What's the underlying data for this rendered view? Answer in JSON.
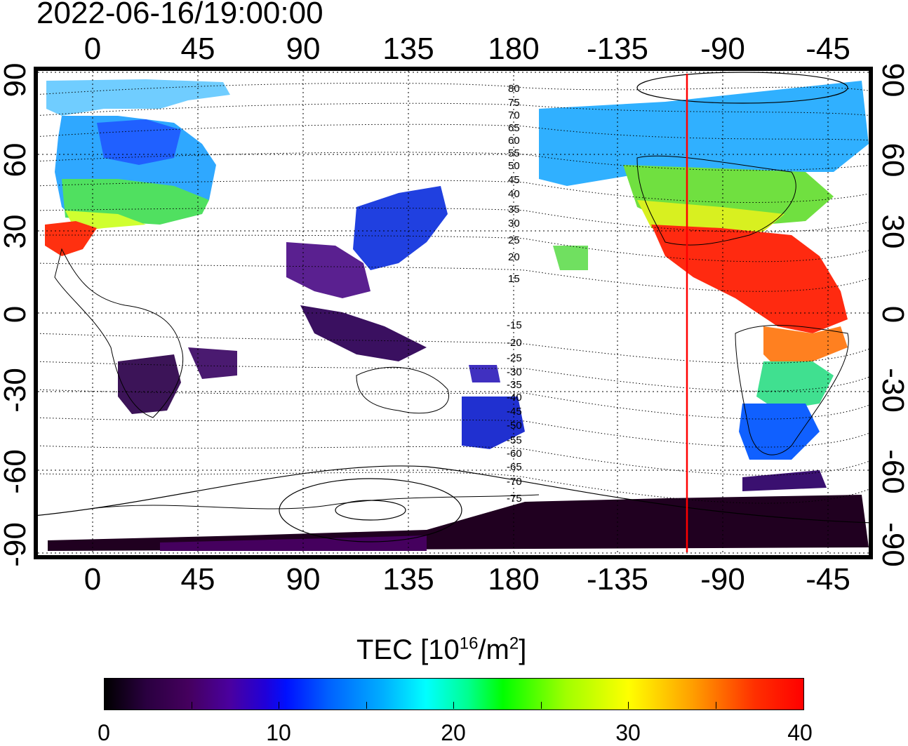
{
  "timestamp": "2022-06-16/19:00:00",
  "axes": {
    "longitude_ticks": [
      "0",
      "45",
      "90",
      "135",
      "180",
      "-135",
      "-90",
      "-45"
    ],
    "latitude_ticks": [
      "90",
      "60",
      "30",
      "0",
      "-30",
      "-60",
      "-90"
    ]
  },
  "contour_labels": {
    "north": [
      "80",
      "75",
      "70",
      "65",
      "60",
      "55",
      "50",
      "45",
      "40",
      "35",
      "30",
      "25",
      "20",
      "15"
    ],
    "south": [
      "-15",
      "-20",
      "-25",
      "-30",
      "-35",
      "-40",
      "-45",
      "-50",
      "-55",
      "-60",
      "-65",
      "-70",
      "-75"
    ]
  },
  "marker_line": {
    "color": "#ff0000",
    "longitude": -105
  },
  "colorbar": {
    "title": "TEC  [10",
    "title_sup1": "16",
    "title_mid": "/m",
    "title_sup2": "2",
    "title_end": "]",
    "tick_labels": [
      "0",
      "10",
      "20",
      "30",
      "40"
    ],
    "range": [
      0,
      40
    ],
    "colors": [
      "#000000",
      "#45005e",
      "#0010ff",
      "#00ffff",
      "#00ff00",
      "#ffff00",
      "#ff0000"
    ]
  }
}
